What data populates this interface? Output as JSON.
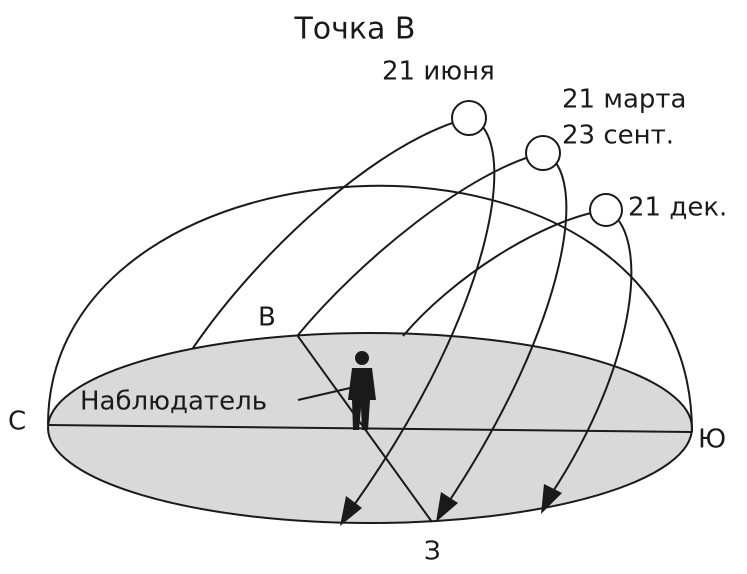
{
  "title": "Точка В",
  "suns": {
    "june": "21 июня",
    "march": "21 марта",
    "september": "23 сент.",
    "december": "21 дек."
  },
  "directions": {
    "east": "В",
    "north": "С",
    "south": "Ю",
    "west": "З"
  },
  "observer": "Наблюдатель"
}
